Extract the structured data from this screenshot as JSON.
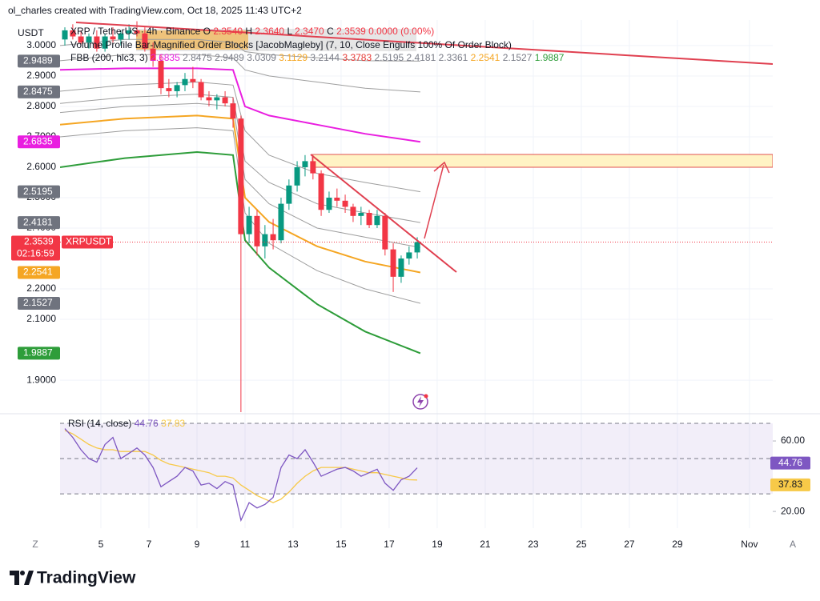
{
  "header": {
    "credit": "ol_charles created with TradingView.com, Oct 18, 2025 11:43 UTC+2",
    "quote_currency": "USDT"
  },
  "legend": {
    "symbol": "XRP / TetherUS · 4h · Binance",
    "quote": [
      {
        "key": "O",
        "value": "2.3540"
      },
      {
        "key": "H",
        "value": "2.3640"
      },
      {
        "key": "L",
        "value": "2.3470"
      },
      {
        "key": "C",
        "value": "2.3539"
      }
    ],
    "change": "0.0000 (0.00%)",
    "indicator": "Volume Profile Bar-Magnified Order Blocks [JacobMagleby] (7, 10, Close Engulfs 100% Of Order Block)",
    "fbb_label": "FBB (200, hlc3, 3)"
  },
  "chart_data": [
    {
      "type": "candlestick",
      "x": [
        3.5,
        3.83,
        4.17,
        4.5,
        4.83,
        5.17,
        5.5,
        5.83,
        6.17,
        6.5,
        6.83,
        7.17,
        7.5,
        7.83,
        8.17,
        8.5,
        8.83,
        9.17,
        9.5,
        9.83,
        10.17,
        10.5,
        10.83,
        11.17,
        11.5,
        11.83,
        12.17,
        12.5,
        12.83,
        13.17,
        13.5,
        13.83,
        14.17,
        14.5,
        14.83,
        15.17,
        15.5,
        15.83,
        16.17,
        16.5,
        16.83,
        17.17,
        17.5,
        17.83,
        18.17
      ],
      "open": [
        3.02,
        3.05,
        3.03,
        3.01,
        3.03,
        2.99,
        3.03,
        3.02,
        3.04,
        3.05,
        3.04,
        2.99,
        2.95,
        2.86,
        2.85,
        2.87,
        2.89,
        2.88,
        2.83,
        2.82,
        2.83,
        2.81,
        2.76,
        2.38,
        2.44,
        2.34,
        2.38,
        2.36,
        2.48,
        2.54,
        2.6,
        2.62,
        2.58,
        2.46,
        2.5,
        2.49,
        2.47,
        2.44,
        2.45,
        2.41,
        2.44,
        2.33,
        2.24,
        2.3,
        2.32
      ],
      "high": [
        3.06,
        3.07,
        3.05,
        3.04,
        3.05,
        3.04,
        3.06,
        3.05,
        3.07,
        3.08,
        3.06,
        3.01,
        2.97,
        2.89,
        2.88,
        2.91,
        2.93,
        2.89,
        2.85,
        2.84,
        2.85,
        2.83,
        2.77,
        2.47,
        2.46,
        2.41,
        2.43,
        2.5,
        2.56,
        2.62,
        2.64,
        2.64,
        2.59,
        2.52,
        2.53,
        2.51,
        2.48,
        2.47,
        2.46,
        2.46,
        2.45,
        2.35,
        2.31,
        2.34,
        2.37
      ],
      "low": [
        3.0,
        3.02,
        3.0,
        2.99,
        2.98,
        2.98,
        3.01,
        3.0,
        3.02,
        3.03,
        2.98,
        2.93,
        2.84,
        2.83,
        2.83,
        2.85,
        2.86,
        2.82,
        2.8,
        2.79,
        2.8,
        2.73,
        1.77,
        2.35,
        2.31,
        2.3,
        2.33,
        2.35,
        2.46,
        2.52,
        2.57,
        2.56,
        2.44,
        2.45,
        2.47,
        2.45,
        2.42,
        2.41,
        2.4,
        2.4,
        2.31,
        2.19,
        2.22,
        2.28,
        2.3
      ],
      "close": [
        3.05,
        3.03,
        3.01,
        3.03,
        2.99,
        3.03,
        3.02,
        3.04,
        3.05,
        3.04,
        2.99,
        2.95,
        2.86,
        2.85,
        2.87,
        2.89,
        2.88,
        2.83,
        2.82,
        2.83,
        2.81,
        2.76,
        2.38,
        2.44,
        2.34,
        2.38,
        2.36,
        2.48,
        2.54,
        2.6,
        2.62,
        2.58,
        2.46,
        2.5,
        2.49,
        2.47,
        2.44,
        2.45,
        2.41,
        2.44,
        2.33,
        2.24,
        2.3,
        2.32,
        2.3539
      ],
      "up_color": "#089981",
      "down_color": "#f23645",
      "xlim": [
        3.3,
        32.97
      ],
      "xticks": [
        5,
        7,
        9,
        11,
        13,
        15,
        17,
        19,
        21,
        23,
        25,
        27,
        29,
        {
          "value": 32,
          "label": "Nov"
        }
      ],
      "ylim": [
        1.795,
        3.084
      ],
      "yticks": [
        {
          "value": 3.0,
          "label": "3.0000"
        },
        {
          "value": 2.9,
          "label": "2.9000"
        },
        {
          "value": 2.8,
          "label": "2.8000"
        },
        {
          "value": 2.7,
          "label": "2.7000"
        },
        {
          "value": 2.6,
          "label": "2.6000"
        },
        {
          "value": 2.5,
          "label": "2.5000"
        },
        {
          "value": 2.4,
          "label": "2.4000"
        },
        {
          "value": 2.2,
          "label": "2.2000"
        },
        {
          "value": 2.1,
          "label": "2.1000"
        },
        {
          "value": 1.9,
          "label": "1.9000"
        }
      ],
      "grid": true,
      "band_x": [
        3.3,
        6,
        9,
        10.5,
        11,
        12,
        14,
        16,
        18.3
      ],
      "bands": [
        {
          "color": "#9e9e9e",
          "values": [
            3.0,
            3.02,
            3.02,
            3.01,
            2.98,
            2.97,
            2.96,
            2.95,
            2.9489
          ]
        },
        {
          "color": "#9e9e9e",
          "values": [
            2.95,
            2.97,
            2.97,
            2.96,
            2.92,
            2.9,
            2.88,
            2.86,
            2.8475
          ]
        },
        {
          "color": "#e91ee0",
          "values": [
            2.92,
            2.925,
            2.925,
            2.92,
            2.8,
            2.77,
            2.74,
            2.71,
            2.6835
          ]
        },
        {
          "color": "#9e9e9e",
          "values": [
            2.85,
            2.87,
            2.88,
            2.87,
            2.72,
            2.64,
            2.58,
            2.55,
            2.5195
          ]
        },
        {
          "color": "#9e9e9e",
          "values": [
            2.81,
            2.83,
            2.84,
            2.83,
            2.62,
            2.55,
            2.48,
            2.45,
            2.4181
          ]
        },
        {
          "color": "#9e9e9e",
          "values": [
            2.78,
            2.8,
            2.81,
            2.8,
            2.56,
            2.48,
            2.4,
            2.37,
            2.3361
          ]
        },
        {
          "color": "#f5a623",
          "values": [
            2.74,
            2.76,
            2.77,
            2.76,
            2.5,
            2.42,
            2.34,
            2.29,
            2.2541
          ]
        },
        {
          "color": "#9e9e9e",
          "values": [
            2.7,
            2.72,
            2.73,
            2.72,
            2.45,
            2.35,
            2.26,
            2.2,
            2.1527
          ]
        },
        {
          "color": "#2e9d3a",
          "values": [
            2.6,
            2.63,
            2.65,
            2.64,
            2.36,
            2.27,
            2.15,
            2.06,
            1.9887
          ]
        }
      ],
      "fbb_values": [
        2.6835,
        2.8475,
        2.9489,
        3.0309,
        3.1129,
        3.2144,
        3.3783,
        2.5195,
        2.4181,
        2.3361,
        2.2541,
        2.1527,
        1.9887
      ],
      "fbb_colors": [
        "#e91ee0",
        "#787b86",
        "#787b86",
        "#787b86",
        "#f5a623",
        "#787b86",
        "#e53935",
        "#787b86",
        "#787b86",
        "#787b86",
        "#f5a623",
        "#787b86",
        "#2e9d3a"
      ],
      "symbol_tag": "XRPUSDT",
      "countdown": "02:16:59",
      "last_color": "#f23645"
    },
    {
      "type": "line",
      "title": "RSI (14, close)",
      "x": [
        3.5,
        3.83,
        4.17,
        4.5,
        4.83,
        5.17,
        5.5,
        5.83,
        6.17,
        6.5,
        6.83,
        7.17,
        7.5,
        7.83,
        8.17,
        8.5,
        8.83,
        9.17,
        9.5,
        9.83,
        10.17,
        10.5,
        10.83,
        11.17,
        11.5,
        11.83,
        12.17,
        12.5,
        12.83,
        13.17,
        13.5,
        13.83,
        14.17,
        14.5,
        14.83,
        15.17,
        15.5,
        15.83,
        16.17,
        16.5,
        16.83,
        17.17,
        17.5,
        17.83,
        18.17
      ],
      "series": [
        {
          "color": "#7e57c2",
          "values": [
            67,
            62,
            55,
            50,
            48,
            58,
            62,
            50,
            53,
            56,
            52,
            45,
            34,
            37,
            40,
            45,
            43,
            35,
            36,
            33,
            37,
            35,
            15,
            25,
            22,
            24,
            28,
            45,
            52,
            50,
            55,
            48,
            40,
            42,
            44,
            45,
            43,
            40,
            42,
            44,
            36,
            32,
            38,
            40,
            44.76
          ]
        },
        {
          "color": "#f7c948",
          "values": [
            66,
            64,
            61,
            58,
            56,
            55,
            55,
            54,
            54,
            54,
            54,
            52,
            49,
            47,
            46,
            45,
            44,
            43,
            42,
            40,
            40,
            39,
            35,
            32,
            29,
            27,
            25,
            27,
            31,
            36,
            40,
            43,
            45,
            45,
            45,
            45,
            44,
            43,
            42,
            42,
            41,
            40,
            39,
            38,
            37.83
          ]
        }
      ],
      "xlim": [
        3.3,
        32.97
      ],
      "ylim": [
        10.5,
        74.1
      ],
      "yticks": [
        {
          "value": 60,
          "label": "60.00"
        },
        {
          "value": 20,
          "label": "20.00"
        }
      ],
      "levels": [
        70,
        50,
        30
      ]
    }
  ],
  "ui": {
    "left_corner": "Z",
    "right_corner": "A",
    "brand": "TradingView"
  }
}
